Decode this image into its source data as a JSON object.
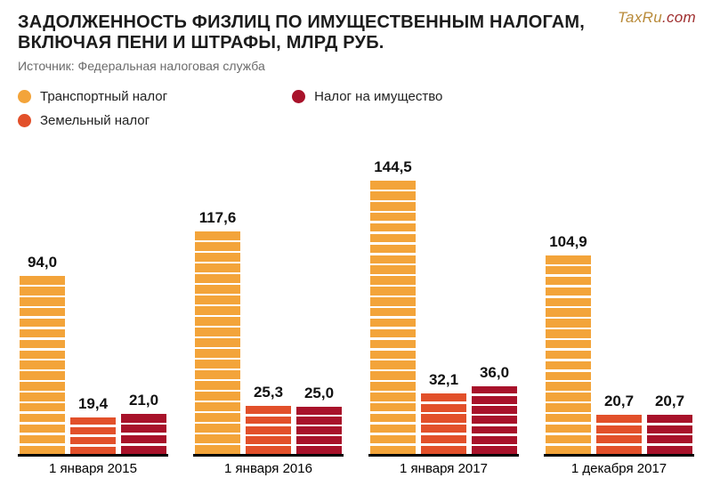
{
  "watermark": {
    "part1": "TaxRu",
    "part2": ".com"
  },
  "title_line1": "ЗАДОЛЖЕННОСТЬ ФИЗЛИЦ ПО ИМУЩЕСТВЕННЫМ НАЛОГАМ,",
  "title_line2": "ВКЛЮЧАЯ ПЕНИ И ШТРАФЫ, МЛРД РУБ.",
  "source": "Источник: Федеральная налоговая служба",
  "legend": {
    "items": [
      {
        "label": "Транспортный налог",
        "color": "#f3a43a"
      },
      {
        "label": "Земельный налог",
        "color": "#e2502a"
      },
      {
        "label": "Налог на имущество",
        "color": "#a8122a"
      }
    ]
  },
  "chart": {
    "type": "bar",
    "y_max": 144.5,
    "segment_unit": 5.5,
    "background": "#ffffff",
    "axis_color": "#000000",
    "value_fontsize": 17,
    "xlabel_fontsize": 15,
    "groups": [
      {
        "xlabel": "1 января 2015",
        "bars": [
          {
            "value": 94.0,
            "label": "94,0",
            "color": "#f3a43a"
          },
          {
            "value": 19.4,
            "label": "19,4",
            "color": "#e2502a"
          },
          {
            "value": 21.0,
            "label": "21,0",
            "color": "#a8122a"
          }
        ]
      },
      {
        "xlabel": "1 января 2016",
        "bars": [
          {
            "value": 117.6,
            "label": "117,6",
            "color": "#f3a43a"
          },
          {
            "value": 25.3,
            "label": "25,3",
            "color": "#e2502a"
          },
          {
            "value": 25.0,
            "label": "25,0",
            "color": "#a8122a"
          }
        ]
      },
      {
        "xlabel": "1 января 2017",
        "bars": [
          {
            "value": 144.5,
            "label": "144,5",
            "color": "#f3a43a"
          },
          {
            "value": 32.1,
            "label": "32,1",
            "color": "#e2502a"
          },
          {
            "value": 36.0,
            "label": "36,0",
            "color": "#a8122a"
          }
        ]
      },
      {
        "xlabel": "1 декабря 2017",
        "bars": [
          {
            "value": 104.9,
            "label": "104,9",
            "color": "#f3a43a"
          },
          {
            "value": 20.7,
            "label": "20,7",
            "color": "#e2502a"
          },
          {
            "value": 20.7,
            "label": "20,7",
            "color": "#a8122a"
          }
        ]
      }
    ]
  }
}
